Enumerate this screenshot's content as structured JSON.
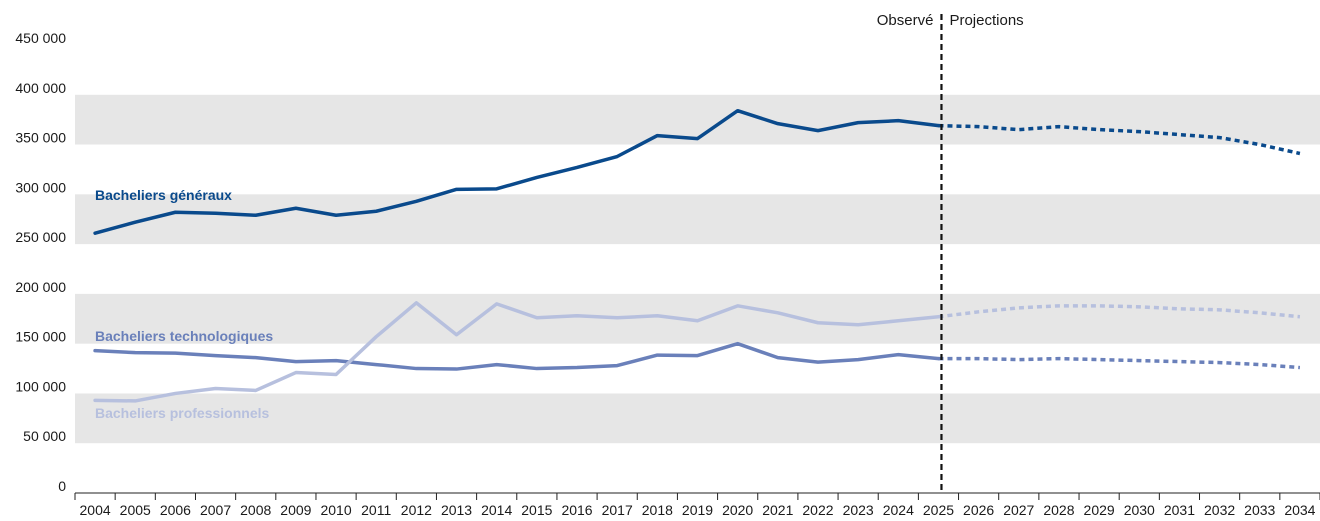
{
  "chart_data": {
    "type": "line",
    "x": [
      2004,
      2005,
      2006,
      2007,
      2008,
      2009,
      2010,
      2011,
      2012,
      2013,
      2014,
      2015,
      2016,
      2017,
      2018,
      2019,
      2020,
      2021,
      2022,
      2023,
      2024,
      2025,
      2026,
      2027,
      2028,
      2029,
      2030,
      2031,
      2032,
      2033,
      2034
    ],
    "x_tick_labels": [
      "2004",
      "2005",
      "2006",
      "2007",
      "2008",
      "2009",
      "2010",
      "2011",
      "2012",
      "2013",
      "2014",
      "2015",
      "2016",
      "2017",
      "2018",
      "2019",
      "2020",
      "2021",
      "2022",
      "2023",
      "2024",
      "2025",
      "2026",
      "2027",
      "2028",
      "2029",
      "2030",
      "2031",
      "2032",
      "2033",
      "2034"
    ],
    "ylim": [
      0,
      450000
    ],
    "y_ticks": [
      0,
      50000,
      100000,
      150000,
      200000,
      250000,
      300000,
      350000,
      400000,
      450000
    ],
    "y_tick_labels": [
      "0",
      "50 000",
      "100 000",
      "150 000",
      "200 000",
      "250 000",
      "300 000",
      "350 000",
      "400 000",
      "450 000"
    ],
    "observed_label": "Observé",
    "projection_label": "Projections",
    "projection_start": 2025,
    "grid": "alternating horizontal bands",
    "series": [
      {
        "name": "Bacheliers généraux",
        "color": "#0a4a8c",
        "values": [
          261000,
          272000,
          282000,
          281000,
          279000,
          286000,
          279000,
          283000,
          293000,
          305000,
          305500,
          317000,
          327000,
          338000,
          359000,
          356000,
          384000,
          371000,
          364000,
          372000,
          374000,
          369000,
          368000,
          365000,
          368000,
          365000,
          363000,
          360000,
          357000,
          350000,
          341000
        ]
      },
      {
        "name": "Bacheliers technologiques",
        "color": "#6a80ba",
        "values": [
          143000,
          141000,
          140500,
          138000,
          136000,
          132000,
          133000,
          129000,
          125000,
          124500,
          129000,
          125000,
          126000,
          128000,
          138500,
          138000,
          150000,
          136000,
          131500,
          134000,
          139000,
          135000,
          135000,
          134000,
          135000,
          134000,
          133000,
          132000,
          131000,
          129000,
          126000
        ]
      },
      {
        "name": "Bacheliers professionnels",
        "color": "#b7c0de",
        "values": [
          93000,
          92500,
          100000,
          105000,
          103000,
          121000,
          119000,
          157000,
          191000,
          159000,
          190000,
          176000,
          178000,
          176000,
          178000,
          173000,
          188000,
          181000,
          171000,
          169000,
          173000,
          177000,
          182000,
          186000,
          188000,
          188000,
          187000,
          185000,
          184000,
          181000,
          177000
        ]
      }
    ]
  }
}
